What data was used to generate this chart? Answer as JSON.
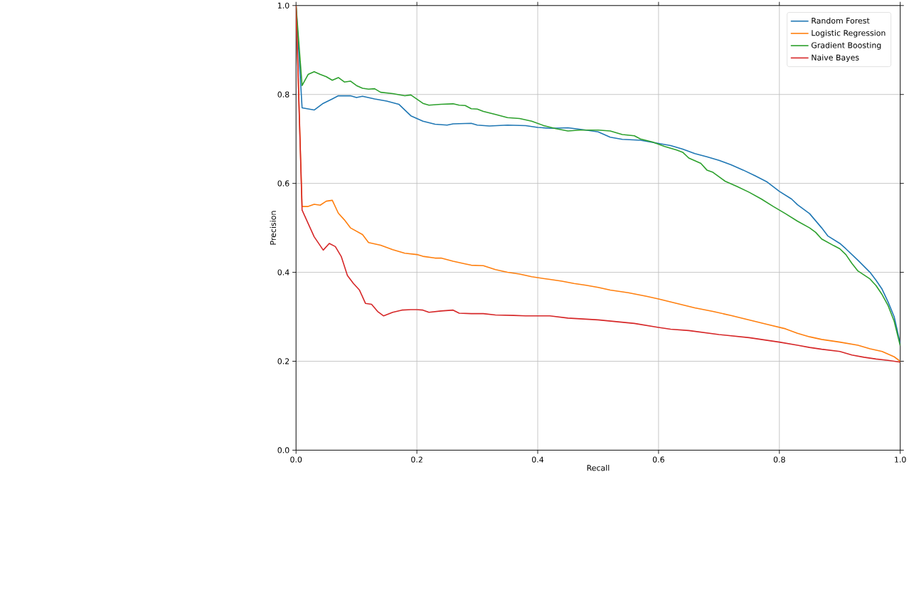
{
  "chart_data": {
    "type": "line",
    "xlabel": "Recall",
    "ylabel": "Precision",
    "xlim": [
      0,
      1
    ],
    "ylim": [
      0,
      1
    ],
    "xticks": [
      {
        "value": 0,
        "label": "0.0"
      },
      {
        "value": 0.2,
        "label": "0.2"
      },
      {
        "value": 0.4,
        "label": "0.4"
      },
      {
        "value": 0.6,
        "label": "0.6"
      },
      {
        "value": 0.8,
        "label": "0.8"
      },
      {
        "value": 1,
        "label": "1.0"
      }
    ],
    "yticks": [
      {
        "value": 0,
        "label": "0.0"
      },
      {
        "value": 0.2,
        "label": "0.2"
      },
      {
        "value": 0.4,
        "label": "0.4"
      },
      {
        "value": 0.6,
        "label": "0.6"
      },
      {
        "value": 0.8,
        "label": "0.8"
      },
      {
        "value": 1,
        "label": "1.0"
      }
    ],
    "grid": true,
    "legend": "top right",
    "series": [
      {
        "name": "Random Forest",
        "color": "#1f77b4",
        "x": [
          0,
          0.01,
          0.03,
          0.045,
          0.06,
          0.07,
          0.09,
          0.1,
          0.11,
          0.13,
          0.15,
          0.17,
          0.19,
          0.21,
          0.23,
          0.25,
          0.26,
          0.29,
          0.3,
          0.32,
          0.35,
          0.38,
          0.4,
          0.42,
          0.45,
          0.48,
          0.5,
          0.52,
          0.54,
          0.57,
          0.6,
          0.62,
          0.64,
          0.66,
          0.68,
          0.7,
          0.72,
          0.74,
          0.76,
          0.78,
          0.8,
          0.82,
          0.83,
          0.85,
          0.86,
          0.87,
          0.88,
          0.9,
          0.91,
          0.93,
          0.95,
          0.96,
          0.97,
          0.98,
          0.99,
          1.0
        ],
        "values": [
          1.0,
          0.77,
          0.765,
          0.78,
          0.79,
          0.797,
          0.797,
          0.793,
          0.796,
          0.79,
          0.785,
          0.778,
          0.752,
          0.74,
          0.733,
          0.731,
          0.734,
          0.735,
          0.731,
          0.729,
          0.731,
          0.73,
          0.726,
          0.724,
          0.725,
          0.72,
          0.716,
          0.704,
          0.699,
          0.697,
          0.69,
          0.685,
          0.677,
          0.667,
          0.66,
          0.652,
          0.642,
          0.63,
          0.617,
          0.603,
          0.582,
          0.565,
          0.552,
          0.532,
          0.516,
          0.5,
          0.482,
          0.465,
          0.453,
          0.427,
          0.4,
          0.382,
          0.362,
          0.333,
          0.3,
          0.24
        ]
      },
      {
        "name": "Logistic Regression",
        "color": "#ff7f0e",
        "x": [
          0,
          0.01,
          0.02,
          0.03,
          0.04,
          0.05,
          0.06,
          0.07,
          0.08,
          0.09,
          0.11,
          0.12,
          0.14,
          0.16,
          0.18,
          0.2,
          0.21,
          0.23,
          0.24,
          0.26,
          0.28,
          0.29,
          0.31,
          0.33,
          0.35,
          0.37,
          0.39,
          0.42,
          0.44,
          0.46,
          0.48,
          0.5,
          0.52,
          0.55,
          0.58,
          0.6,
          0.63,
          0.66,
          0.69,
          0.72,
          0.75,
          0.78,
          0.81,
          0.83,
          0.85,
          0.87,
          0.9,
          0.93,
          0.95,
          0.97,
          0.99,
          1.0
        ],
        "values": [
          1.0,
          0.548,
          0.548,
          0.553,
          0.551,
          0.56,
          0.562,
          0.533,
          0.518,
          0.5,
          0.485,
          0.467,
          0.461,
          0.451,
          0.443,
          0.44,
          0.436,
          0.432,
          0.432,
          0.425,
          0.419,
          0.416,
          0.415,
          0.406,
          0.4,
          0.396,
          0.39,
          0.384,
          0.38,
          0.375,
          0.371,
          0.366,
          0.36,
          0.354,
          0.346,
          0.34,
          0.33,
          0.32,
          0.312,
          0.303,
          0.293,
          0.283,
          0.273,
          0.263,
          0.255,
          0.249,
          0.243,
          0.236,
          0.228,
          0.222,
          0.21,
          0.2
        ]
      },
      {
        "name": "Gradient Boosting",
        "color": "#2ca02c",
        "x": [
          0,
          0.01,
          0.02,
          0.03,
          0.04,
          0.05,
          0.06,
          0.07,
          0.08,
          0.09,
          0.1,
          0.11,
          0.12,
          0.13,
          0.14,
          0.16,
          0.18,
          0.19,
          0.21,
          0.22,
          0.24,
          0.26,
          0.27,
          0.28,
          0.29,
          0.3,
          0.31,
          0.33,
          0.35,
          0.37,
          0.39,
          0.41,
          0.43,
          0.45,
          0.47,
          0.5,
          0.52,
          0.54,
          0.56,
          0.57,
          0.59,
          0.61,
          0.63,
          0.64,
          0.65,
          0.67,
          0.68,
          0.69,
          0.71,
          0.73,
          0.75,
          0.77,
          0.79,
          0.81,
          0.83,
          0.85,
          0.86,
          0.87,
          0.89,
          0.9,
          0.91,
          0.92,
          0.93,
          0.95,
          0.96,
          0.97,
          0.98,
          0.99,
          1.0
        ],
        "values": [
          1.0,
          0.82,
          0.845,
          0.851,
          0.845,
          0.84,
          0.832,
          0.838,
          0.828,
          0.83,
          0.82,
          0.814,
          0.812,
          0.813,
          0.805,
          0.802,
          0.797,
          0.799,
          0.78,
          0.776,
          0.778,
          0.779,
          0.776,
          0.775,
          0.768,
          0.767,
          0.762,
          0.755,
          0.748,
          0.746,
          0.74,
          0.73,
          0.723,
          0.718,
          0.72,
          0.72,
          0.718,
          0.71,
          0.707,
          0.7,
          0.693,
          0.683,
          0.675,
          0.67,
          0.657,
          0.645,
          0.63,
          0.625,
          0.605,
          0.593,
          0.58,
          0.565,
          0.548,
          0.532,
          0.515,
          0.5,
          0.49,
          0.475,
          0.46,
          0.453,
          0.44,
          0.42,
          0.403,
          0.385,
          0.37,
          0.35,
          0.325,
          0.29,
          0.235
        ]
      },
      {
        "name": "Naive Bayes",
        "color": "#d62728",
        "x": [
          0,
          0.01,
          0.02,
          0.03,
          0.045,
          0.055,
          0.065,
          0.075,
          0.085,
          0.095,
          0.105,
          0.115,
          0.125,
          0.135,
          0.145,
          0.16,
          0.175,
          0.19,
          0.2,
          0.21,
          0.22,
          0.24,
          0.26,
          0.27,
          0.29,
          0.31,
          0.33,
          0.36,
          0.38,
          0.42,
          0.45,
          0.5,
          0.53,
          0.56,
          0.6,
          0.62,
          0.65,
          0.7,
          0.75,
          0.8,
          0.83,
          0.85,
          0.87,
          0.9,
          0.92,
          0.94,
          0.96,
          0.98,
          1.0
        ],
        "values": [
          1.0,
          0.54,
          0.51,
          0.48,
          0.45,
          0.465,
          0.458,
          0.435,
          0.393,
          0.375,
          0.36,
          0.33,
          0.328,
          0.312,
          0.302,
          0.31,
          0.315,
          0.316,
          0.316,
          0.315,
          0.31,
          0.313,
          0.315,
          0.308,
          0.307,
          0.307,
          0.304,
          0.303,
          0.302,
          0.302,
          0.297,
          0.293,
          0.289,
          0.285,
          0.276,
          0.272,
          0.269,
          0.26,
          0.253,
          0.243,
          0.236,
          0.231,
          0.227,
          0.222,
          0.214,
          0.209,
          0.205,
          0.202,
          0.198
        ]
      }
    ]
  }
}
